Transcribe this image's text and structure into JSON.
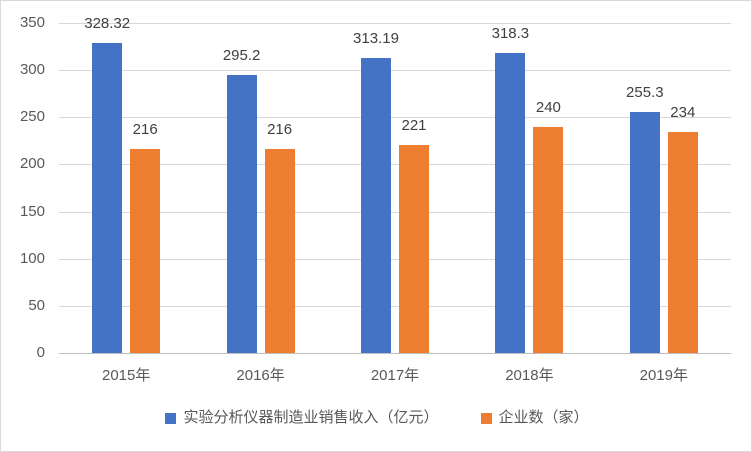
{
  "chart_data": {
    "type": "bar",
    "title": "",
    "categories": [
      "2015年",
      "2016年",
      "2017年",
      "2018年",
      "2019年"
    ],
    "series": [
      {
        "name": "实验分析仪器制造业销售收入（亿元）",
        "color": "#4472C4",
        "values": [
          328.32,
          295.2,
          313.19,
          318.3,
          255.3
        ],
        "value_labels": [
          "328.32",
          "295.2",
          "313.19",
          "318.3",
          "255.3"
        ]
      },
      {
        "name": "企业数（家）",
        "color": "#ED7D31",
        "values": [
          216,
          216,
          221,
          240,
          234
        ],
        "value_labels": [
          "216",
          "216",
          "221",
          "240",
          "234"
        ]
      }
    ],
    "ylim": [
      0,
      350
    ],
    "yticks": [
      0,
      50,
      100,
      150,
      200,
      250,
      300,
      350
    ],
    "grid": true,
    "legend_position": "bottom",
    "value_labels_shown": true
  },
  "colors": {
    "series_blue": "#4472C4",
    "series_orange": "#ED7D31",
    "gridline": "#D9D9D9",
    "axis_line": "#BFBFBF",
    "tick_text": "#595959",
    "value_label_text": "#404040",
    "background": "#FFFFFF",
    "border": "#D9D9D9"
  }
}
